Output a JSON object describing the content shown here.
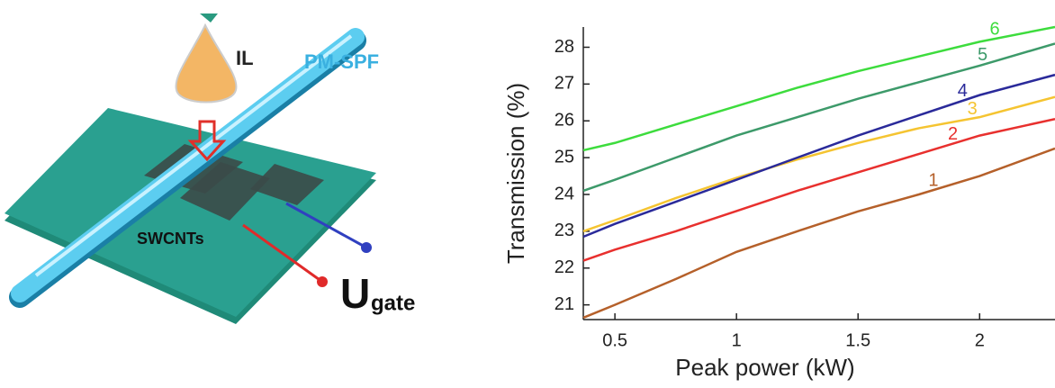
{
  "diagram": {
    "labels": {
      "il": "IL",
      "fiber": "PM-SPF",
      "tubes": "SWCNTs",
      "u": "U",
      "gate": "gate"
    }
  },
  "chart_data": {
    "type": "line",
    "x_label": "Peak power (kW)",
    "y_label": "Transmission (%)",
    "x": [
      0.37,
      0.5,
      0.75,
      1,
      1.25,
      1.5,
      1.75,
      2,
      2.31
    ],
    "xlim": [
      0.37,
      2.31
    ],
    "ylim": [
      20.6,
      28.55
    ],
    "xticks": [
      0.5,
      1,
      1.5,
      2
    ],
    "yticks": [
      21,
      22,
      23,
      24,
      25,
      26,
      27,
      28
    ],
    "series": [
      {
        "name": "1",
        "color": "#b5602a",
        "values": [
          20.65,
          21.0,
          21.7,
          22.44,
          23.0,
          23.54,
          24.0,
          24.5,
          25.25
        ]
      },
      {
        "name": "2",
        "color": "#e8302e",
        "values": [
          22.2,
          22.5,
          23.0,
          23.55,
          24.1,
          24.6,
          25.1,
          25.6,
          26.05
        ]
      },
      {
        "name": "3",
        "color": "#f5c431",
        "values": [
          23.0,
          23.3,
          23.9,
          24.45,
          24.95,
          25.4,
          25.8,
          26.1,
          26.65
        ]
      },
      {
        "name": "4",
        "color": "#2a2a9a",
        "values": [
          22.85,
          23.2,
          23.8,
          24.4,
          25.0,
          25.6,
          26.15,
          26.7,
          27.25
        ]
      },
      {
        "name": "5",
        "color": "#3d9a6a",
        "values": [
          24.1,
          24.4,
          25.0,
          25.6,
          26.1,
          26.6,
          27.05,
          27.5,
          28.1
        ]
      },
      {
        "name": "6",
        "color": "#3ddc3d",
        "values": [
          25.2,
          25.4,
          25.9,
          26.4,
          26.9,
          27.35,
          27.75,
          28.15,
          28.55
        ]
      }
    ]
  }
}
